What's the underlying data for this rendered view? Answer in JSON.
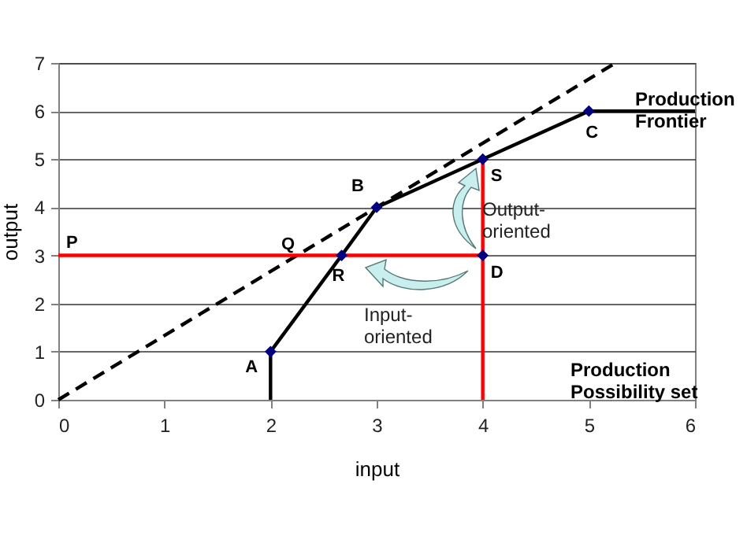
{
  "chart_data": {
    "type": "line",
    "xlabel": "input",
    "ylabel": "output",
    "xlim": [
      0,
      6
    ],
    "ylim": [
      0,
      7
    ],
    "xticks": [
      0,
      1,
      2,
      3,
      4,
      5,
      6
    ],
    "yticks": [
      0,
      1,
      2,
      3,
      4,
      5,
      6,
      7
    ],
    "grid": "y",
    "series": [
      {
        "type": "line",
        "color": "#000000",
        "line_style": "solid",
        "x": [
          2,
          2,
          2.67,
          3,
          4,
          5,
          6
        ],
        "values": [
          0,
          1,
          3,
          4,
          5,
          6,
          6
        ]
      },
      {
        "type": "line",
        "color": "#000000",
        "line_style": "dashed",
        "x": [
          0,
          5.25
        ],
        "values": [
          0,
          7
        ]
      },
      {
        "type": "line",
        "color": "#ff0000",
        "line_style": "solid",
        "x": [
          0,
          4
        ],
        "values": [
          3,
          3
        ]
      },
      {
        "type": "line",
        "color": "#ff0000",
        "line_style": "solid",
        "x": [
          4,
          4
        ],
        "values": [
          0,
          5
        ]
      },
      {
        "type": "scatter",
        "color": "#000080",
        "marker": "diamond",
        "x": [
          2,
          2.67,
          3,
          4,
          5,
          4
        ],
        "values": [
          1,
          3,
          4,
          5,
          6,
          3
        ]
      }
    ],
    "annotations": [
      {
        "text": "A",
        "x": 2,
        "y": 1
      },
      {
        "text": "R",
        "x": 2.67,
        "y": 3
      },
      {
        "text": "B",
        "x": 3,
        "y": 4
      },
      {
        "text": "S",
        "x": 4,
        "y": 5
      },
      {
        "text": "C",
        "x": 5,
        "y": 6
      },
      {
        "text": "D",
        "x": 4,
        "y": 3
      },
      {
        "text": "P",
        "x": 0,
        "y": 3
      },
      {
        "text": "Q",
        "x": 2.25,
        "y": 3
      },
      "Production Frontier",
      "Output-oriented",
      "Input-oriented",
      "Production Possibility set"
    ]
  }
}
